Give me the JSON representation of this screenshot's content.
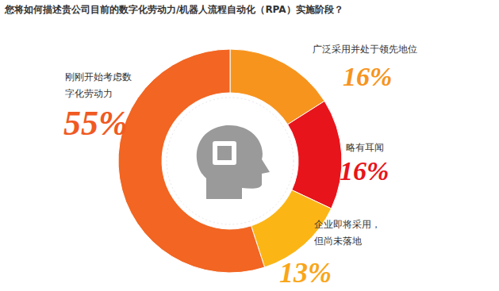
{
  "chart_data": {
    "type": "pie",
    "title": "您将如何描述贵公司目前的数字化劳动力/机器人流程自动化（RPA）实施阶段？",
    "categories": [
      "广泛采用并处于领先地位",
      "略有耳闻",
      "企业即将采用，但尚未落地",
      "刚刚开始考虑数字化劳动力"
    ],
    "values": [
      16,
      16,
      13,
      55
    ],
    "value_labels": [
      "16%",
      "16%",
      "13%",
      "55%"
    ],
    "colors": [
      "#f7941d",
      "#e8141b",
      "#fbb616",
      "#f26522"
    ],
    "data_labels": true
  }
}
